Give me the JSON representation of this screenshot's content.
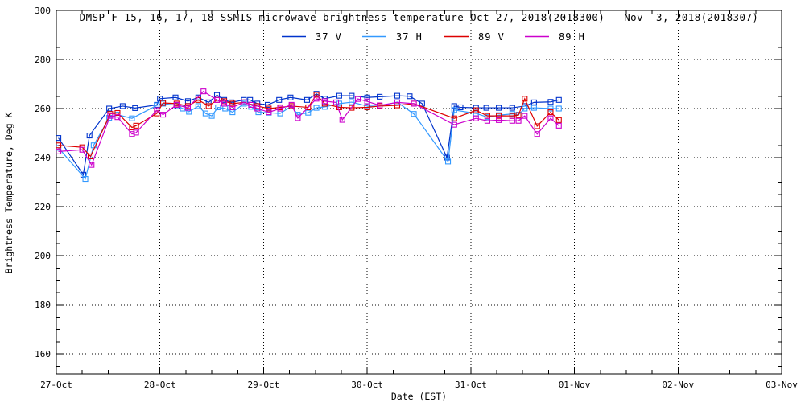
{
  "page": {
    "background": "#ffffff",
    "axis_color": "#000000"
  },
  "chart_data": {
    "type": "line",
    "title": "DMSP F-15,-16,-17,-18 SSMIS microwave brightness temperature Oct 27, 2018(2018300) - Nov  3, 2018(2018307)",
    "xlabel": "Date (EST)",
    "ylabel": "Brightness Temperature, Deg K",
    "x_tick_labels": [
      "27-Oct",
      "28-Oct",
      "29-Oct",
      "30-Oct",
      "31-Oct",
      "01-Nov",
      "02-Nov",
      "03-Nov"
    ],
    "x_range_days": [
      0,
      7
    ],
    "ylim": [
      151.8,
      300
    ],
    "y_ticks": [
      160,
      180,
      200,
      220,
      240,
      260,
      280,
      300
    ],
    "y_minor_step": 5,
    "x_minor_step_days": 0.25,
    "grid": "dotted lines at every major tick",
    "legend_position": "top-center",
    "marker": "open-square",
    "series": [
      {
        "name": "37 V",
        "color": "#0033cc",
        "points": [
          [
            0.02,
            248
          ],
          [
            0.26,
            233
          ],
          [
            0.32,
            249
          ],
          [
            0.51,
            260
          ],
          [
            0.64,
            261
          ],
          [
            0.76,
            260.2
          ],
          [
            0.97,
            261.5
          ],
          [
            1.0,
            264
          ],
          [
            1.15,
            264.5
          ],
          [
            1.27,
            263
          ],
          [
            1.37,
            264.5
          ],
          [
            1.47,
            262.5
          ],
          [
            1.55,
            265.5
          ],
          [
            1.62,
            263.5
          ],
          [
            1.69,
            262.5
          ],
          [
            1.81,
            263.5
          ],
          [
            1.87,
            263.5
          ],
          [
            1.94,
            262
          ],
          [
            2.04,
            261.5
          ],
          [
            2.15,
            263.5
          ],
          [
            2.26,
            264.5
          ],
          [
            2.42,
            263.5
          ],
          [
            2.51,
            266
          ],
          [
            2.59,
            264
          ],
          [
            2.73,
            265.2
          ],
          [
            2.85,
            265.2
          ],
          [
            3.0,
            264.5
          ],
          [
            3.12,
            264.8
          ],
          [
            3.29,
            265.2
          ],
          [
            3.41,
            265
          ],
          [
            3.53,
            262
          ],
          [
            3.77,
            240
          ],
          [
            3.84,
            261
          ],
          [
            3.9,
            260.5
          ],
          [
            4.05,
            260.3
          ],
          [
            4.15,
            260.3
          ],
          [
            4.27,
            260.3
          ],
          [
            4.4,
            260.3
          ],
          [
            4.52,
            261
          ],
          [
            4.61,
            262.5
          ],
          [
            4.77,
            262.7
          ],
          [
            4.85,
            263.5
          ]
        ]
      },
      {
        "name": "37 H",
        "color": "#3399ff",
        "points": [
          [
            0.02,
            244
          ],
          [
            0.28,
            231.3
          ],
          [
            0.36,
            245
          ],
          [
            0.51,
            256.2
          ],
          [
            0.59,
            257.5
          ],
          [
            0.73,
            256
          ],
          [
            0.97,
            261.3
          ],
          [
            1.03,
            262
          ],
          [
            1.16,
            261.3
          ],
          [
            1.22,
            260
          ],
          [
            1.28,
            258.7
          ],
          [
            1.37,
            261
          ],
          [
            1.44,
            258
          ],
          [
            1.5,
            257
          ],
          [
            1.56,
            260.5
          ],
          [
            1.63,
            260
          ],
          [
            1.7,
            258.5
          ],
          [
            1.81,
            262
          ],
          [
            1.88,
            260.7
          ],
          [
            1.95,
            258.5
          ],
          [
            2.05,
            258.3
          ],
          [
            2.16,
            258
          ],
          [
            2.27,
            261
          ],
          [
            2.33,
            257.5
          ],
          [
            2.43,
            258.3
          ],
          [
            2.51,
            260.3
          ],
          [
            2.59,
            260.7
          ],
          [
            2.73,
            262
          ],
          [
            2.85,
            262.6
          ],
          [
            3.0,
            261
          ],
          [
            3.12,
            261
          ],
          [
            3.29,
            262.6
          ],
          [
            3.45,
            257.8
          ],
          [
            3.78,
            238.4
          ],
          [
            3.84,
            259.4
          ],
          [
            4.05,
            258
          ],
          [
            4.16,
            256.5
          ],
          [
            4.27,
            257.3
          ],
          [
            4.4,
            257.8
          ],
          [
            4.46,
            257.5
          ],
          [
            4.52,
            260
          ],
          [
            4.61,
            260.3
          ],
          [
            4.77,
            260
          ],
          [
            4.85,
            260
          ]
        ]
      },
      {
        "name": "89 V",
        "color": "#dd0000",
        "points": [
          [
            0.02,
            245
          ],
          [
            0.25,
            244.2
          ],
          [
            0.33,
            240.5
          ],
          [
            0.52,
            257.8
          ],
          [
            0.59,
            258.2
          ],
          [
            0.73,
            252.3
          ],
          [
            0.77,
            253
          ],
          [
            0.97,
            258
          ],
          [
            1.03,
            262.3
          ],
          [
            1.16,
            262
          ],
          [
            1.27,
            261
          ],
          [
            1.37,
            263.5
          ],
          [
            1.47,
            261
          ],
          [
            1.55,
            263.5
          ],
          [
            1.62,
            263
          ],
          [
            1.7,
            262
          ],
          [
            1.81,
            262.5
          ],
          [
            1.94,
            261
          ],
          [
            2.05,
            260
          ],
          [
            2.16,
            260.5
          ],
          [
            2.27,
            261
          ],
          [
            2.43,
            260.5
          ],
          [
            2.51,
            265.6
          ],
          [
            2.59,
            262
          ],
          [
            2.73,
            260.5
          ],
          [
            2.85,
            260.3
          ],
          [
            3.0,
            260.5
          ],
          [
            3.12,
            261
          ],
          [
            3.29,
            261.3
          ],
          [
            3.45,
            262
          ],
          [
            3.84,
            256
          ],
          [
            4.05,
            259.3
          ],
          [
            4.16,
            257
          ],
          [
            4.27,
            257
          ],
          [
            4.4,
            257
          ],
          [
            4.46,
            257.3
          ],
          [
            4.52,
            264
          ],
          [
            4.64,
            252.8
          ],
          [
            4.77,
            258.5
          ],
          [
            4.85,
            255.3
          ]
        ]
      },
      {
        "name": "89 H",
        "color": "#cc00cc",
        "points": [
          [
            0.02,
            242.5
          ],
          [
            0.25,
            243.2
          ],
          [
            0.34,
            237
          ],
          [
            0.52,
            257
          ],
          [
            0.59,
            256.5
          ],
          [
            0.73,
            249.6
          ],
          [
            0.77,
            250.2
          ],
          [
            0.97,
            259.3
          ],
          [
            1.03,
            257.5
          ],
          [
            1.16,
            261.5
          ],
          [
            1.27,
            260.3
          ],
          [
            1.42,
            267
          ],
          [
            1.55,
            263.5
          ],
          [
            1.62,
            262
          ],
          [
            1.7,
            260.5
          ],
          [
            1.81,
            262.5
          ],
          [
            1.88,
            261.5
          ],
          [
            1.94,
            260
          ],
          [
            2.05,
            258.5
          ],
          [
            2.16,
            260
          ],
          [
            2.27,
            261.5
          ],
          [
            2.33,
            256.1
          ],
          [
            2.51,
            264
          ],
          [
            2.59,
            263
          ],
          [
            2.7,
            262.5
          ],
          [
            2.76,
            255.4
          ],
          [
            2.91,
            263.9
          ],
          [
            3.0,
            262.9
          ],
          [
            3.12,
            261.3
          ],
          [
            3.29,
            262.5
          ],
          [
            3.45,
            262
          ],
          [
            3.84,
            253.4
          ],
          [
            4.05,
            256
          ],
          [
            4.16,
            255
          ],
          [
            4.27,
            255.3
          ],
          [
            4.4,
            255
          ],
          [
            4.46,
            255
          ],
          [
            4.52,
            257
          ],
          [
            4.64,
            249.6
          ],
          [
            4.77,
            256
          ],
          [
            4.85,
            253
          ]
        ]
      }
    ]
  }
}
